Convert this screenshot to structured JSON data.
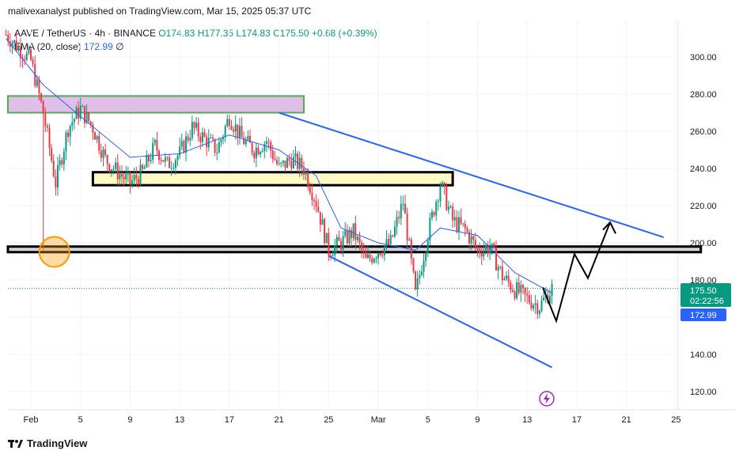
{
  "header": {
    "published": "malivexanalyst published on TradingView.com, Mar 15, 2025 05:37 UTC"
  },
  "legend": {
    "symbol": "AAVE / TetherUS · 4h · BINANCE",
    "open": "O174.83",
    "high": "H177.35",
    "low": "L174.83",
    "close": "C175.50",
    "change": "+0.68 (+0.39%)",
    "ema_label": "EMA (20, close)",
    "ema_value": "172.99",
    "ema_suffix": "∅"
  },
  "price_labels": {
    "last": "175.50",
    "countdown": "02:22:56",
    "ema": "172.99"
  },
  "footer": {
    "brand": "TradingView"
  },
  "colors": {
    "up": "#089981",
    "down": "#f23645",
    "ema": "#2962ff",
    "channel": "#2962ff",
    "purple_zone": "#e1bee7",
    "purple_border": "#4caf50",
    "yellow_zone": "#fff9c4",
    "grey_zone": "#d1d4dc",
    "circle": "#ff9800",
    "arrow": "#000000",
    "flash_icon": "#9c27b0"
  },
  "chart_data": {
    "type": "candlestick",
    "title": "AAVE / TetherUS · 4h · BINANCE",
    "y_ticks": [
      "300.00",
      "280.00",
      "260.00",
      "240.00",
      "220.00",
      "200.00",
      "180.00",
      "160.00",
      "140.00",
      "120.00"
    ],
    "y_tick_values": [
      300,
      280,
      260,
      240,
      220,
      200,
      180,
      160,
      140,
      120
    ],
    "x_ticks": [
      "Feb",
      "5",
      "9",
      "13",
      "17",
      "21",
      "25",
      "Mar",
      "5",
      "9",
      "13",
      "17",
      "21",
      "25"
    ],
    "x_tick_dates": [
      "2025-02-01",
      "2025-02-05",
      "2025-02-09",
      "2025-02-13",
      "2025-02-17",
      "2025-02-21",
      "2025-02-25",
      "2025-03-01",
      "2025-03-05",
      "2025-03-09",
      "2025-03-13",
      "2025-03-17",
      "2025-03-21",
      "2025-03-25"
    ],
    "ylim": [
      112,
      314
    ],
    "close_path": [
      [
        "2025-01-30",
        312
      ],
      [
        "2025-01-31",
        305
      ],
      [
        "2025-02-01",
        298
      ],
      [
        "2025-02-02",
        270
      ],
      [
        "2025-02-03",
        232
      ],
      [
        "2025-02-04",
        262
      ],
      [
        "2025-02-05",
        272
      ],
      [
        "2025-02-06",
        262
      ],
      [
        "2025-02-07",
        245
      ],
      [
        "2025-02-08",
        238
      ],
      [
        "2025-02-09",
        232
      ],
      [
        "2025-02-10",
        238
      ],
      [
        "2025-02-11",
        252
      ],
      [
        "2025-02-12",
        242
      ],
      [
        "2025-02-13",
        248
      ],
      [
        "2025-02-14",
        262
      ],
      [
        "2025-02-15",
        256
      ],
      [
        "2025-02-16",
        250
      ],
      [
        "2025-02-17",
        268
      ],
      [
        "2025-02-18",
        256
      ],
      [
        "2025-02-19",
        250
      ],
      [
        "2025-02-20",
        255
      ],
      [
        "2025-02-21",
        240
      ],
      [
        "2025-02-22",
        245
      ],
      [
        "2025-02-23",
        240
      ],
      [
        "2025-02-24",
        222
      ],
      [
        "2025-02-25",
        196
      ],
      [
        "2025-02-26",
        200
      ],
      [
        "2025-02-27",
        206
      ],
      [
        "2025-02-28",
        190
      ],
      [
        "2025-03-01",
        196
      ],
      [
        "2025-03-02",
        200
      ],
      [
        "2025-03-03",
        222
      ],
      [
        "2025-03-04",
        172
      ],
      [
        "2025-03-05",
        205
      ],
      [
        "2025-03-06",
        232
      ],
      [
        "2025-03-07",
        212
      ],
      [
        "2025-03-08",
        207
      ],
      [
        "2025-03-09",
        196
      ],
      [
        "2025-03-10",
        198
      ],
      [
        "2025-03-11",
        182
      ],
      [
        "2025-03-12",
        175
      ],
      [
        "2025-03-13",
        170
      ],
      [
        "2025-03-14",
        166
      ],
      [
        "2025-03-15",
        175.5
      ]
    ],
    "ema_path": [
      [
        "2025-01-30",
        310
      ],
      [
        "2025-02-02",
        285
      ],
      [
        "2025-02-05",
        268
      ],
      [
        "2025-02-09",
        246
      ],
      [
        "2025-02-13",
        248
      ],
      [
        "2025-02-17",
        258
      ],
      [
        "2025-02-21",
        250
      ],
      [
        "2025-02-24",
        236
      ],
      [
        "2025-02-26",
        208
      ],
      [
        "2025-03-01",
        200
      ],
      [
        "2025-03-04",
        196
      ],
      [
        "2025-03-06",
        208
      ],
      [
        "2025-03-09",
        204
      ],
      [
        "2025-03-12",
        184
      ],
      [
        "2025-03-15",
        172.99
      ]
    ],
    "zones": [
      {
        "name": "resistance-zone-280",
        "x": [
          "2025-01-30",
          "2025-02-23"
        ],
        "y": [
          270,
          279
        ]
      },
      {
        "name": "zone-235",
        "x": [
          "2025-02-06",
          "2025-03-07"
        ],
        "y": [
          231,
          238
        ]
      },
      {
        "name": "support-zone-198",
        "x": [
          "2025-01-30",
          "2025-03-27"
        ],
        "y": [
          195,
          198
        ]
      }
    ],
    "channel_upper": [
      [
        "2025-02-21",
        270
      ],
      [
        "2025-03-24",
        203
      ]
    ],
    "channel_lower": [
      [
        "2025-02-25",
        193
      ],
      [
        "2025-03-15",
        133
      ]
    ],
    "projection": [
      [
        "2025-03-15",
        176
      ],
      [
        "2025-03-16",
        158
      ],
      [
        "2025-03-18",
        194
      ],
      [
        "2025-03-19",
        181
      ],
      [
        "2025-03-21",
        211
      ],
      [
        "2025-03-21",
        206
      ]
    ],
    "marker_circle": {
      "date": "2025-02-02",
      "value": 196
    },
    "last_price": 175.5,
    "ema_last": 172.99
  }
}
